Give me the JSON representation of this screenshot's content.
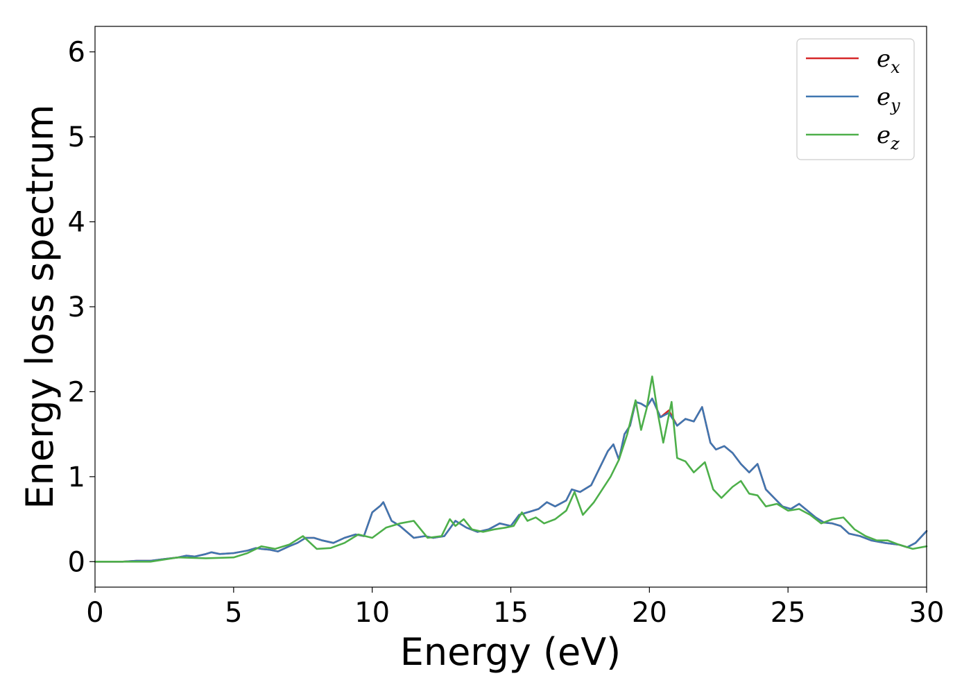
{
  "chart_data": {
    "type": "line",
    "title": "",
    "xlabel": "Energy (eV)",
    "ylabel": "Energy loss spectrum",
    "xlim": [
      0,
      30
    ],
    "ylim": [
      -0.3,
      6.3
    ],
    "xticks": [
      0,
      5,
      10,
      15,
      20,
      25,
      30
    ],
    "yticks": [
      0,
      1,
      2,
      3,
      4,
      5,
      6
    ],
    "grid": false,
    "legend_position": "top-right",
    "series": [
      {
        "name": "e",
        "subscript": "x",
        "color": "#d62728",
        "x": [
          0,
          1,
          1.5,
          2,
          2.5,
          3,
          3.3,
          3.6,
          4,
          4.2,
          4.5,
          5,
          5.5,
          5.8,
          6,
          6.3,
          6.6,
          7,
          7.3,
          7.6,
          7.9,
          8.2,
          8.6,
          9,
          9.4,
          9.7,
          10,
          10.3,
          10.4,
          10.7,
          11,
          11.5,
          11.9,
          12.2,
          12.6,
          13,
          13.4,
          13.8,
          14.2,
          14.6,
          15,
          15.3,
          15.6,
          16,
          16.3,
          16.6,
          17,
          17.2,
          17.5,
          17.9,
          18.2,
          18.5,
          18.7,
          18.9,
          19.1,
          19.3,
          19.5,
          19.7,
          19.9,
          20.1,
          20.4,
          20.7,
          21,
          21.3,
          21.6,
          21.9,
          22.2,
          22.4,
          22.7,
          23,
          23.3,
          23.6,
          23.9,
          24.2,
          24.5,
          24.8,
          25.1,
          25.4,
          25.7,
          26,
          26.3,
          26.6,
          26.9,
          27.2,
          27.6,
          28,
          28.5,
          29,
          29.3,
          29.6,
          30
        ],
        "y": [
          0,
          0,
          0.01,
          0.01,
          0.03,
          0.05,
          0.07,
          0.06,
          0.09,
          0.11,
          0.09,
          0.1,
          0.13,
          0.16,
          0.15,
          0.14,
          0.12,
          0.18,
          0.22,
          0.28,
          0.28,
          0.25,
          0.22,
          0.28,
          0.32,
          0.3,
          0.58,
          0.66,
          0.7,
          0.48,
          0.42,
          0.28,
          0.3,
          0.28,
          0.3,
          0.48,
          0.4,
          0.35,
          0.38,
          0.45,
          0.42,
          0.55,
          0.58,
          0.62,
          0.7,
          0.65,
          0.72,
          0.85,
          0.82,
          0.9,
          1.1,
          1.3,
          1.38,
          1.2,
          1.5,
          1.6,
          1.88,
          1.86,
          1.82,
          1.92,
          1.7,
          1.78,
          1.6,
          1.68,
          1.65,
          1.82,
          1.4,
          1.32,
          1.36,
          1.28,
          1.15,
          1.05,
          1.15,
          0.85,
          0.75,
          0.65,
          0.62,
          0.68,
          0.6,
          0.52,
          0.46,
          0.45,
          0.42,
          0.33,
          0.3,
          0.25,
          0.22,
          0.2,
          0.17,
          0.22,
          0.36
        ]
      },
      {
        "name": "e",
        "subscript": "y",
        "color": "#3f76b0",
        "x": [
          0,
          1,
          1.5,
          2,
          2.5,
          3,
          3.3,
          3.6,
          4,
          4.2,
          4.5,
          5,
          5.5,
          5.8,
          6,
          6.3,
          6.6,
          7,
          7.3,
          7.6,
          7.9,
          8.2,
          8.6,
          9,
          9.4,
          9.7,
          10,
          10.3,
          10.4,
          10.7,
          11,
          11.5,
          11.9,
          12.2,
          12.6,
          13,
          13.4,
          13.8,
          14.2,
          14.6,
          15,
          15.3,
          15.6,
          16,
          16.3,
          16.6,
          17,
          17.2,
          17.5,
          17.9,
          18.2,
          18.5,
          18.7,
          18.9,
          19.1,
          19.3,
          19.5,
          19.7,
          19.9,
          20.1,
          20.4,
          20.7,
          21,
          21.3,
          21.6,
          21.9,
          22.2,
          22.4,
          22.7,
          23,
          23.3,
          23.6,
          23.9,
          24.2,
          24.5,
          24.8,
          25.1,
          25.4,
          25.7,
          26,
          26.3,
          26.6,
          26.9,
          27.2,
          27.6,
          28,
          28.5,
          29,
          29.3,
          29.6,
          30
        ],
        "y": [
          0,
          0,
          0.01,
          0.01,
          0.03,
          0.05,
          0.07,
          0.06,
          0.09,
          0.11,
          0.09,
          0.1,
          0.13,
          0.16,
          0.15,
          0.14,
          0.12,
          0.18,
          0.22,
          0.28,
          0.28,
          0.25,
          0.22,
          0.28,
          0.32,
          0.3,
          0.58,
          0.66,
          0.7,
          0.48,
          0.42,
          0.28,
          0.3,
          0.28,
          0.3,
          0.48,
          0.4,
          0.35,
          0.38,
          0.45,
          0.42,
          0.55,
          0.58,
          0.62,
          0.7,
          0.65,
          0.72,
          0.85,
          0.82,
          0.9,
          1.1,
          1.3,
          1.38,
          1.2,
          1.5,
          1.6,
          1.88,
          1.86,
          1.82,
          1.92,
          1.7,
          1.75,
          1.6,
          1.68,
          1.65,
          1.82,
          1.4,
          1.32,
          1.36,
          1.28,
          1.15,
          1.05,
          1.15,
          0.85,
          0.75,
          0.65,
          0.62,
          0.68,
          0.6,
          0.52,
          0.46,
          0.45,
          0.42,
          0.33,
          0.3,
          0.25,
          0.22,
          0.2,
          0.17,
          0.22,
          0.36
        ]
      },
      {
        "name": "e",
        "subscript": "z",
        "color": "#4daf4a",
        "x": [
          0,
          1,
          2,
          3,
          4,
          5,
          5.5,
          6,
          6.5,
          7,
          7.5,
          8,
          8.5,
          9,
          9.5,
          10,
          10.5,
          11,
          11.5,
          12,
          12.5,
          12.8,
          13,
          13.3,
          13.6,
          14,
          14.4,
          14.8,
          15.1,
          15.4,
          15.6,
          15.9,
          16.2,
          16.6,
          17,
          17.3,
          17.6,
          18,
          18.3,
          18.6,
          18.9,
          19.2,
          19.5,
          19.7,
          19.9,
          20.1,
          20.3,
          20.5,
          20.8,
          21,
          21.3,
          21.6,
          22,
          22.3,
          22.6,
          23,
          23.3,
          23.6,
          23.9,
          24.2,
          24.6,
          25,
          25.4,
          25.8,
          26.2,
          26.6,
          27,
          27.4,
          27.8,
          28.2,
          28.6,
          29,
          29.5,
          30
        ],
        "y": [
          0,
          0,
          0,
          0.05,
          0.04,
          0.05,
          0.1,
          0.18,
          0.15,
          0.2,
          0.3,
          0.15,
          0.16,
          0.22,
          0.32,
          0.28,
          0.4,
          0.45,
          0.48,
          0.28,
          0.3,
          0.5,
          0.42,
          0.5,
          0.38,
          0.35,
          0.38,
          0.4,
          0.42,
          0.58,
          0.48,
          0.52,
          0.45,
          0.5,
          0.6,
          0.82,
          0.55,
          0.7,
          0.85,
          1.0,
          1.2,
          1.5,
          1.9,
          1.55,
          1.8,
          2.18,
          1.75,
          1.4,
          1.88,
          1.22,
          1.18,
          1.05,
          1.17,
          0.85,
          0.75,
          0.88,
          0.95,
          0.8,
          0.78,
          0.65,
          0.68,
          0.6,
          0.62,
          0.55,
          0.45,
          0.5,
          0.52,
          0.38,
          0.3,
          0.25,
          0.25,
          0.2,
          0.15,
          0.18
        ]
      }
    ]
  }
}
